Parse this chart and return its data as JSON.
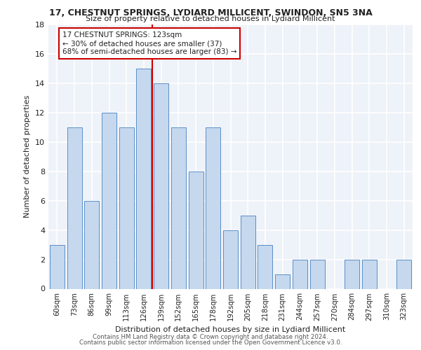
{
  "title1": "17, CHESTNUT SPRINGS, LYDIARD MILLICENT, SWINDON, SN5 3NA",
  "title2": "Size of property relative to detached houses in Lydiard Millicent",
  "xlabel": "Distribution of detached houses by size in Lydiard Millicent",
  "ylabel": "Number of detached properties",
  "categories": [
    "60sqm",
    "73sqm",
    "86sqm",
    "99sqm",
    "113sqm",
    "126sqm",
    "139sqm",
    "152sqm",
    "165sqm",
    "178sqm",
    "192sqm",
    "205sqm",
    "218sqm",
    "231sqm",
    "244sqm",
    "257sqm",
    "270sqm",
    "284sqm",
    "297sqm",
    "310sqm",
    "323sqm"
  ],
  "values": [
    3,
    11,
    6,
    12,
    11,
    15,
    14,
    11,
    8,
    11,
    4,
    5,
    3,
    1,
    2,
    2,
    0,
    2,
    2,
    0,
    2
  ],
  "bar_color": "#c5d8ed",
  "bar_edge_color": "#5b8fc9",
  "property_line_x": 5.5,
  "property_line_color": "#cc0000",
  "annotation_text": "17 CHESTNUT SPRINGS: 123sqm\n← 30% of detached houses are smaller (37)\n68% of semi-detached houses are larger (83) →",
  "annotation_box_color": "#ffffff",
  "annotation_box_edge": "#cc0000",
  "ylim": [
    0,
    18
  ],
  "yticks": [
    0,
    2,
    4,
    6,
    8,
    10,
    12,
    14,
    16,
    18
  ],
  "footer1": "Contains HM Land Registry data © Crown copyright and database right 2024.",
  "footer2": "Contains public sector information licensed under the Open Government Licence v3.0.",
  "bg_color": "#eef2f9",
  "grid_color": "#ffffff"
}
